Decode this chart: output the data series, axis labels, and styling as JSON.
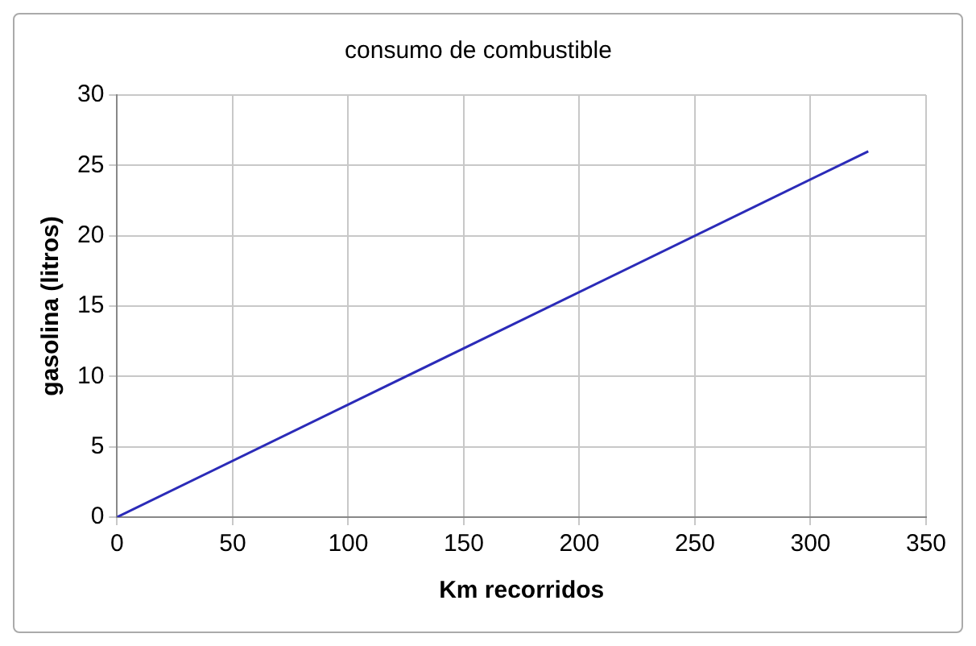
{
  "chart_data": {
    "type": "line",
    "title": "consumo de combustible",
    "xlabel": "Km recorridos",
    "ylabel": "gasolina (litros)",
    "series": [
      {
        "color": "#2b2bb8",
        "x": [
          0,
          325
        ],
        "values": [
          0,
          26
        ]
      }
    ],
    "xlim": [
      0,
      350
    ],
    "xticks": [
      0,
      50,
      100,
      150,
      200,
      250,
      300,
      350
    ],
    "ylim": [
      0,
      30
    ],
    "yticks": [
      0,
      5,
      10,
      15,
      20,
      25,
      30
    ],
    "grid": true,
    "legend": false,
    "marker": "none",
    "line_style": "solid"
  }
}
